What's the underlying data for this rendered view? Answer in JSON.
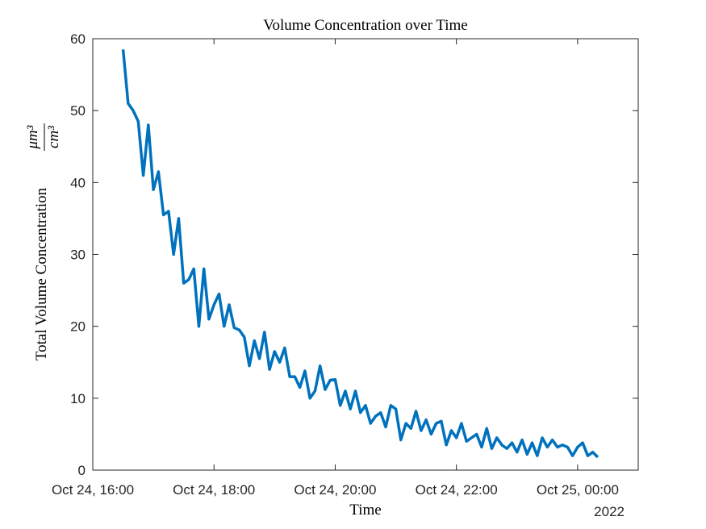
{
  "chart_data": {
    "type": "line",
    "title": "Volume Concentration over Time",
    "xlabel": "Time",
    "x_secondary_label": "2022",
    "ylabel": "Total Volume Concentration",
    "ylabel_fraction": {
      "numerator": "μm³",
      "denominator": "cm³"
    },
    "x": [
      "2022-10-24T16:30",
      "2022-10-24T16:35",
      "2022-10-24T16:40",
      "2022-10-24T16:45",
      "2022-10-24T16:50",
      "2022-10-24T16:55",
      "2022-10-24T17:00",
      "2022-10-24T17:05",
      "2022-10-24T17:10",
      "2022-10-24T17:15",
      "2022-10-24T17:20",
      "2022-10-24T17:25",
      "2022-10-24T17:30",
      "2022-10-24T17:35",
      "2022-10-24T17:40",
      "2022-10-24T17:45",
      "2022-10-24T17:50",
      "2022-10-24T17:55",
      "2022-10-24T18:00",
      "2022-10-24T18:05",
      "2022-10-24T18:10",
      "2022-10-24T18:15",
      "2022-10-24T18:20",
      "2022-10-24T18:25",
      "2022-10-24T18:30",
      "2022-10-24T18:35",
      "2022-10-24T18:40",
      "2022-10-24T18:45",
      "2022-10-24T18:50",
      "2022-10-24T18:55",
      "2022-10-24T19:00",
      "2022-10-24T19:05",
      "2022-10-24T19:10",
      "2022-10-24T19:15",
      "2022-10-24T19:20",
      "2022-10-24T19:25",
      "2022-10-24T19:30",
      "2022-10-24T19:35",
      "2022-10-24T19:40",
      "2022-10-24T19:45",
      "2022-10-24T19:50",
      "2022-10-24T19:55",
      "2022-10-24T20:00",
      "2022-10-24T20:05",
      "2022-10-24T20:10",
      "2022-10-24T20:15",
      "2022-10-24T20:20",
      "2022-10-24T20:25",
      "2022-10-24T20:30",
      "2022-10-24T20:35",
      "2022-10-24T20:40",
      "2022-10-24T20:45",
      "2022-10-24T20:50",
      "2022-10-24T20:55",
      "2022-10-24T21:00",
      "2022-10-24T21:05",
      "2022-10-24T21:10",
      "2022-10-24T21:15",
      "2022-10-24T21:20",
      "2022-10-24T21:25",
      "2022-10-24T21:30",
      "2022-10-24T21:35",
      "2022-10-24T21:40",
      "2022-10-24T21:45",
      "2022-10-24T21:50",
      "2022-10-24T21:55",
      "2022-10-24T22:00",
      "2022-10-24T22:05",
      "2022-10-24T22:10",
      "2022-10-24T22:15",
      "2022-10-24T22:20",
      "2022-10-24T22:25",
      "2022-10-24T22:30",
      "2022-10-24T22:35",
      "2022-10-24T22:40",
      "2022-10-24T22:45",
      "2022-10-24T22:50",
      "2022-10-24T22:55",
      "2022-10-24T23:00",
      "2022-10-24T23:05",
      "2022-10-24T23:10",
      "2022-10-24T23:15",
      "2022-10-24T23:20",
      "2022-10-24T23:25",
      "2022-10-24T23:30",
      "2022-10-24T23:35",
      "2022-10-24T23:40",
      "2022-10-24T23:45",
      "2022-10-24T23:50",
      "2022-10-24T23:55",
      "2022-10-25T00:00",
      "2022-10-25T00:05",
      "2022-10-25T00:10",
      "2022-10-25T00:15",
      "2022-10-25T00:20"
    ],
    "values": [
      58.5,
      51,
      50,
      48.5,
      41,
      48,
      39,
      41.5,
      35.5,
      36,
      30,
      35,
      26,
      26.5,
      28,
      20,
      28,
      21,
      23,
      24.5,
      20,
      23,
      19.8,
      19.5,
      18.5,
      14.5,
      18,
      15.5,
      19.2,
      14,
      16.5,
      15,
      17,
      13,
      13,
      11.5,
      13.8,
      10,
      11,
      14.5,
      11.2,
      12.5,
      12.6,
      9,
      11,
      8.5,
      11,
      8,
      9,
      6.5,
      7.5,
      8,
      6,
      9,
      8.5,
      4.2,
      6.5,
      5.8,
      8.2,
      5.5,
      7,
      5,
      6.5,
      6.8,
      3.5,
      5.5,
      4.5,
      6.5,
      4,
      4.5,
      5,
      3.2,
      5.8,
      3,
      4.5,
      3.5,
      3,
      3.8,
      2.5,
      4.2,
      2.2,
      3.8,
      2,
      4.5,
      3.2,
      4.2,
      3.2,
      3.5,
      3.2,
      2,
      3.2,
      3.8,
      2,
      2.5,
      1.8
    ],
    "color": "#0072bd",
    "xlim": [
      "2022-10-24T16:00",
      "2022-10-25T01:00"
    ],
    "xticks": [
      {
        "value": "2022-10-24T16:00",
        "label": "Oct 24, 16:00"
      },
      {
        "value": "2022-10-24T18:00",
        "label": "Oct 24, 18:00"
      },
      {
        "value": "2022-10-24T20:00",
        "label": "Oct 24, 20:00"
      },
      {
        "value": "2022-10-24T22:00",
        "label": "Oct 24, 22:00"
      },
      {
        "value": "2022-10-25T00:00",
        "label": "Oct 25, 00:00"
      }
    ],
    "ylim": [
      0,
      60
    ],
    "yticks": [
      0,
      10,
      20,
      30,
      40,
      50,
      60
    ],
    "grid": false
  }
}
